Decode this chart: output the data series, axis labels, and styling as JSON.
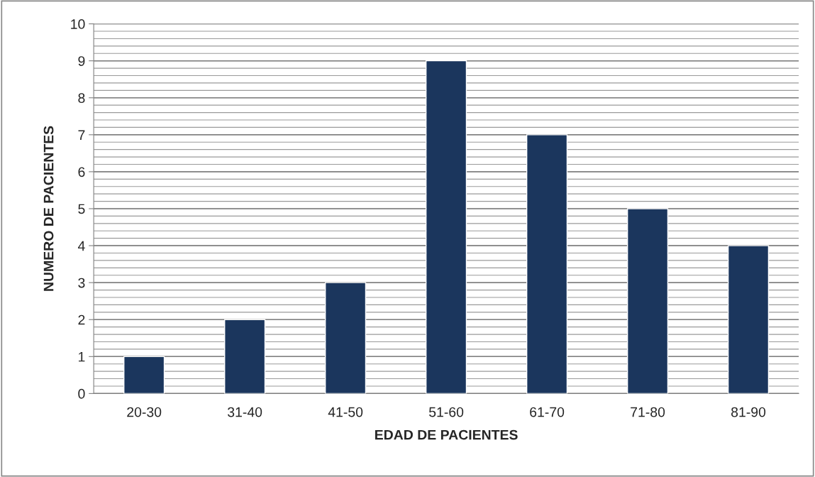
{
  "chart_data": {
    "type": "bar",
    "xlabel": "EDAD DE PACIENTES",
    "ylabel": "NUMERO DE PACIENTES",
    "categories": [
      "20-30",
      "31-40",
      "41-50",
      "51-60",
      "61-70",
      "71-80",
      "81-90"
    ],
    "values": [
      1,
      2,
      3,
      9,
      7,
      5,
      4
    ],
    "color": "#1b365d",
    "ylim": [
      0,
      10
    ],
    "yticks": [
      0,
      1,
      2,
      3,
      4,
      5,
      6,
      7,
      8,
      9,
      10
    ],
    "grid": "y",
    "legend": false
  }
}
